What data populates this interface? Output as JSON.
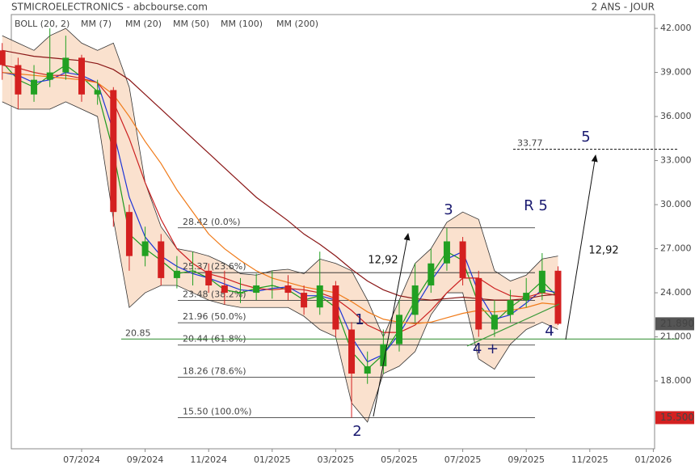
{
  "chart_data": {
    "type": "candlestick",
    "title": "STMICROELECTRONICS - abcbourse.com",
    "subtitle": "2 ANS - JOUR",
    "categories": [
      null,
      null,
      null,
      null,
      null,
      "07/2024",
      null,
      null,
      null,
      "09/2024",
      null,
      null,
      null,
      "11/2024",
      null,
      null,
      null,
      "01/2025",
      null,
      null,
      null,
      "03/2025",
      null,
      null,
      null,
      "05/2025",
      null,
      null,
      null,
      "07/2025",
      null,
      null,
      null,
      "09/2025",
      null,
      null,
      null,
      "11/2025",
      null,
      null,
      null,
      "01/2026"
    ],
    "open": [
      40.5,
      39.5,
      37.5,
      38.5,
      39.0,
      40.0,
      37.5,
      37.8,
      29.5,
      26.5,
      27.5,
      25.0,
      25.5,
      25.5,
      24.5,
      24.0,
      24.0,
      24.5,
      24.5,
      24.0,
      23.0,
      24.5,
      21.5,
      18.5,
      19.0,
      20.5,
      22.5,
      24.5,
      26.0,
      27.5,
      25.0,
      21.5,
      22.5,
      23.5,
      24.0,
      25.5,
      null,
      null,
      null,
      null,
      null,
      null
    ],
    "high": [
      41.0,
      40.0,
      39.5,
      42.0,
      41.5,
      40.2,
      38.5,
      38.0,
      30.0,
      28.5,
      28.0,
      26.5,
      26.8,
      26.0,
      25.5,
      25.0,
      25.3,
      25.5,
      25.2,
      24.5,
      26.8,
      24.8,
      22.0,
      20.0,
      21.5,
      23.5,
      26.0,
      27.0,
      28.4,
      27.8,
      25.5,
      23.5,
      24.2,
      25.0,
      26.7,
      25.8,
      null,
      null,
      null,
      null,
      null,
      null
    ],
    "low": [
      38.5,
      36.5,
      37.0,
      38.0,
      38.5,
      37.0,
      36.8,
      28.5,
      25.5,
      25.8,
      24.5,
      24.3,
      24.5,
      24.0,
      23.2,
      23.3,
      23.5,
      23.6,
      23.5,
      22.5,
      22.5,
      21.0,
      15.5,
      17.8,
      18.5,
      20.0,
      22.0,
      24.0,
      25.5,
      24.5,
      21.0,
      21.0,
      22.0,
      23.0,
      23.5,
      21.8,
      null,
      null,
      null,
      null,
      null,
      null
    ],
    "close": [
      39.5,
      37.5,
      38.5,
      39.0,
      40.0,
      37.5,
      37.8,
      29.5,
      26.5,
      27.5,
      25.0,
      25.5,
      25.5,
      24.5,
      24.0,
      24.0,
      24.5,
      24.5,
      24.0,
      23.0,
      24.5,
      21.5,
      18.5,
      19.0,
      20.5,
      22.5,
      24.5,
      26.0,
      27.5,
      25.0,
      21.5,
      22.5,
      23.5,
      24.0,
      25.5,
      21.89,
      null,
      null,
      null,
      null,
      null,
      null
    ],
    "up_color": "#22a022",
    "down_color": "#d42020",
    "bollinger": {
      "name": "BOLL (20, 2)",
      "color": "#333333",
      "fill": "#f9dcc6",
      "upper": [
        41.5,
        41.0,
        40.5,
        41.5,
        42.0,
        41.0,
        40.5,
        41.0,
        38.0,
        31.5,
        28.5,
        27.0,
        26.8,
        26.5,
        26.0,
        25.3,
        25.2,
        25.5,
        25.6,
        25.3,
        26.3,
        26.0,
        25.5,
        23.5,
        21.0,
        23.5,
        26.0,
        27.0,
        28.8,
        29.5,
        29.0,
        25.5,
        24.8,
        25.2,
        26.3,
        26.5,
        null,
        null,
        null,
        null,
        null,
        null
      ],
      "lower": [
        37.0,
        36.5,
        36.5,
        36.5,
        37.0,
        36.5,
        36.0,
        29.0,
        23.0,
        24.0,
        24.5,
        24.5,
        24.0,
        23.5,
        23.2,
        23.0,
        23.0,
        23.0,
        23.0,
        22.4,
        21.5,
        21.0,
        16.5,
        15.2,
        18.5,
        19.0,
        20.0,
        22.5,
        24.0,
        24.0,
        19.5,
        18.8,
        20.5,
        21.5,
        22.0,
        21.5,
        null,
        null,
        null,
        null,
        null,
        null
      ]
    },
    "series": [
      {
        "name": "MM (7)",
        "color": "#1e9a1e",
        "values": [
          39.7,
          38.5,
          38.0,
          38.8,
          39.5,
          38.7,
          37.7,
          33.6,
          28.0,
          27.0,
          26.2,
          25.3,
          25.5,
          25.0,
          24.2,
          24.0,
          24.3,
          24.5,
          24.2,
          23.5,
          23.8,
          23.0,
          20.0,
          18.8,
          19.8,
          21.5,
          23.5,
          25.2,
          26.8,
          26.2,
          23.2,
          22.0,
          23.0,
          23.8,
          24.8,
          23.7,
          null,
          null,
          null,
          null,
          null,
          null
        ]
      },
      {
        "name": "MM (20)",
        "color": "#1c34d6",
        "values": [
          39.0,
          38.8,
          38.3,
          38.5,
          39.0,
          38.8,
          38.3,
          35.0,
          30.5,
          27.8,
          26.5,
          25.8,
          25.3,
          25.0,
          24.6,
          24.2,
          24.1,
          24.3,
          24.4,
          23.8,
          23.8,
          23.5,
          21.0,
          19.3,
          19.8,
          21.2,
          23.0,
          24.8,
          26.3,
          26.8,
          24.0,
          22.2,
          22.5,
          23.3,
          24.2,
          24.0,
          null,
          null,
          null,
          null,
          null,
          null
        ]
      },
      {
        "name": "MM (50)",
        "color": "#cc2020",
        "values": [
          39.5,
          39.3,
          39.0,
          38.8,
          38.8,
          38.6,
          38.3,
          37.0,
          34.5,
          31.5,
          29.0,
          27.0,
          26.0,
          25.3,
          25.0,
          24.6,
          24.3,
          24.2,
          24.3,
          24.2,
          24.0,
          23.6,
          22.8,
          21.8,
          21.3,
          21.3,
          21.8,
          22.8,
          24.0,
          25.0,
          25.0,
          24.3,
          23.8,
          23.7,
          24.0,
          23.8,
          null,
          null,
          null,
          null,
          null,
          null
        ]
      },
      {
        "name": "MM (100)",
        "color": "#f07a18",
        "values": [
          39.0,
          38.9,
          38.8,
          38.7,
          38.6,
          38.5,
          38.3,
          37.5,
          36.0,
          34.3,
          32.8,
          31.0,
          29.5,
          28.0,
          27.0,
          26.2,
          25.5,
          25.0,
          24.7,
          24.4,
          24.2,
          24.0,
          23.4,
          22.7,
          22.2,
          22.0,
          21.9,
          22.0,
          22.3,
          22.6,
          22.8,
          22.7,
          22.8,
          23.0,
          23.3,
          23.2,
          null,
          null,
          null,
          null,
          null,
          null
        ]
      },
      {
        "name": "MM (200)",
        "color": "#8a1616",
        "values": [
          40.5,
          40.3,
          40.1,
          40.0,
          39.9,
          39.8,
          39.6,
          39.2,
          38.5,
          37.5,
          36.5,
          35.5,
          34.5,
          33.5,
          32.5,
          31.5,
          30.5,
          29.7,
          28.9,
          28.0,
          27.3,
          26.5,
          25.6,
          24.8,
          24.2,
          23.8,
          23.6,
          23.5,
          23.6,
          23.7,
          23.6,
          23.5,
          23.5,
          23.6,
          23.8,
          23.9,
          null,
          null,
          null,
          null,
          null,
          null
        ]
      }
    ],
    "ylim": [
      13.38,
      42.94
    ],
    "yticks": [
      {
        "value": 42,
        "label": "42.000"
      },
      {
        "value": 39,
        "label": "39.000"
      },
      {
        "value": 36,
        "label": "36.000"
      },
      {
        "value": 33,
        "label": "33.000"
      },
      {
        "value": 30,
        "label": "30.000"
      },
      {
        "value": 27,
        "label": "27.000"
      },
      {
        "value": 24,
        "label": "24.000"
      },
      {
        "value": 21,
        "label": "21.000"
      },
      {
        "value": 18,
        "label": "18.000"
      }
    ],
    "fibonacci": [
      {
        "value": 28.42,
        "label": "28.42  (0.0%)"
      },
      {
        "value": 25.37,
        "label": "25.37  (23.6%)"
      },
      {
        "value": 23.48,
        "label": "23.48  (38.2%)"
      },
      {
        "value": 21.96,
        "label": "21.96  (50.0%)"
      },
      {
        "value": 20.44,
        "label": "20.44  (61.8%)"
      },
      {
        "value": 18.26,
        "label": "18.26  (78.6%)"
      },
      {
        "value": 15.5,
        "label": "15.50  (100.0%)"
      }
    ],
    "support": {
      "value": 20.85,
      "color": "#2a8a2a"
    },
    "target": {
      "value": 33.77
    },
    "last_price": {
      "value": 21.89,
      "label": "21.890",
      "color": "#555555"
    },
    "low_price": {
      "value": 15.5,
      "label": "15.500",
      "color": "#d42020"
    },
    "waves": [
      "1",
      "2",
      "3",
      "4",
      "4 +",
      "5",
      "R 5"
    ],
    "moves": [
      "12,92",
      "12,92"
    ]
  }
}
